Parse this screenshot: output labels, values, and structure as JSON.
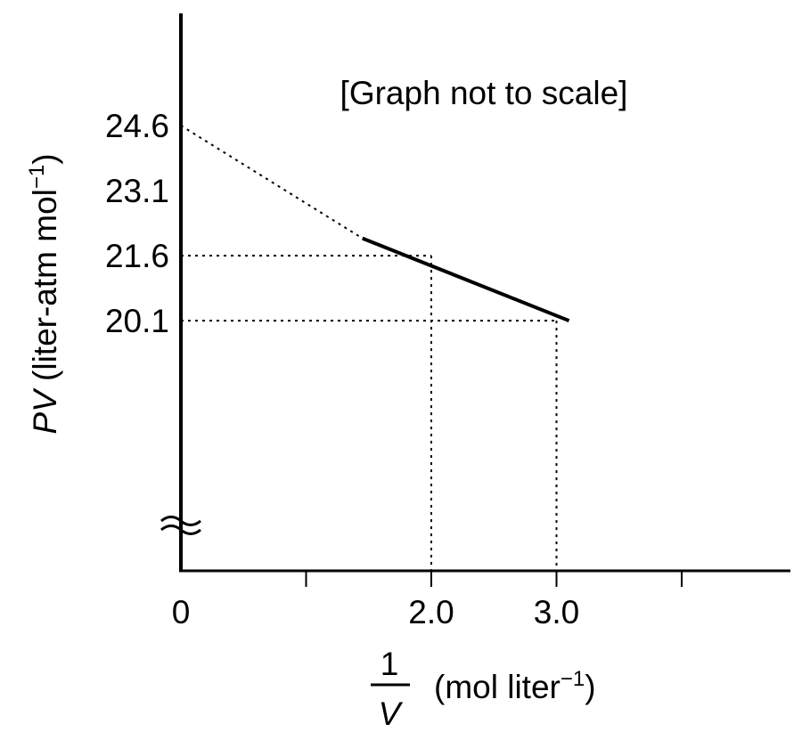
{
  "chart_data": {
    "type": "line",
    "annotation": "[Graph not to scale]",
    "ylabel": {
      "var": "PV",
      "unit": " (liter-atm mol",
      "sup": "−1",
      "close": ")"
    },
    "xlabel": {
      "numerator": "1",
      "denominator": "V",
      "unit": "(mol liter",
      "sup": "−1",
      "close": ")"
    },
    "x_ticks": [
      0,
      1.0,
      2.0,
      3.0,
      4.0
    ],
    "x_tick_labels": [
      {
        "x": 0,
        "label": "0"
      },
      {
        "x": 2.0,
        "label": "2.0"
      },
      {
        "x": 3.0,
        "label": "3.0"
      }
    ],
    "y_tick_labels": [
      {
        "y": 24.6,
        "label": "24.6"
      },
      {
        "y": 23.1,
        "label": "23.1"
      },
      {
        "y": 21.6,
        "label": "21.6"
      },
      {
        "y": 20.1,
        "label": "20.1"
      }
    ],
    "axis_break": "y",
    "series": [
      {
        "style": "solid",
        "points": [
          {
            "x": 1.45,
            "y": 22.0
          },
          {
            "x": 3.1,
            "y": 20.1
          }
        ]
      },
      {
        "style": "dotted",
        "points": [
          {
            "x": 0,
            "y": 24.6
          },
          {
            "x": 1.45,
            "y": 22.0
          }
        ]
      }
    ],
    "reference_lines": [
      {
        "x": 2.0,
        "y": 21.6
      },
      {
        "x": 3.0,
        "y": 20.1
      }
    ],
    "not_to_scale": true
  }
}
